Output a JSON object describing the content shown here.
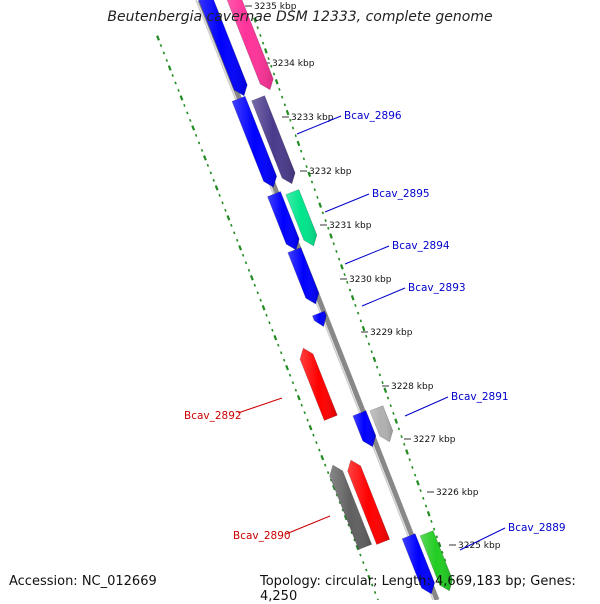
{
  "title": "Beutenbergia cavernae DSM 12333, complete genome",
  "footer": {
    "accession": "Accession: NC_012669",
    "topology": "Topology: circular; Length: 4,669,183 bp; Genes: 4,250"
  },
  "colors": {
    "axis": "#888888",
    "gc_ticks": "#228b22",
    "forward_label": "#0000cc",
    "reverse_label": "#cc0000",
    "kbp_text": "#111111"
  },
  "kbp_ticks": [
    "3235 kbp",
    "3234 kbp",
    "3233 kbp",
    "3232 kbp",
    "3231 kbp",
    "3230 kbp",
    "3229 kbp",
    "3228 kbp",
    "3227 kbp",
    "3226 kbp",
    "3225 kbp"
  ],
  "genes": [
    {
      "label": "",
      "color": "#0000ff",
      "track": "inner-forward"
    },
    {
      "label": "",
      "color": "#ff3399",
      "track": "outer-forward"
    },
    {
      "label": "Bcav_2896",
      "color": "#0000ff",
      "track": "inner-forward"
    },
    {
      "label": "",
      "color": "#4b3a8c",
      "track": "outer-forward"
    },
    {
      "label": "Bcav_2895",
      "color": "#0000ff",
      "track": "inner-forward"
    },
    {
      "label": "",
      "color": "#00e58c",
      "track": "outer-forward"
    },
    {
      "label": "Bcav_2894",
      "color": "#0000ff",
      "track": "inner-forward"
    },
    {
      "label": "Bcav_2893",
      "color": "#0000ff",
      "track": "inner-forward"
    },
    {
      "label": "Bcav_2892",
      "color": "#ff0000",
      "track": "reverse"
    },
    {
      "label": "Bcav_2891",
      "color": "#0000ff",
      "track": "inner-forward"
    },
    {
      "label": "",
      "color": "#b0b0b0",
      "track": "outer-forward"
    },
    {
      "label": "",
      "color": "#ff0000",
      "track": "reverse"
    },
    {
      "label": "Bcav_2890",
      "color": "#606060",
      "track": "reverse"
    },
    {
      "label": "Bcav_2889",
      "color": "#0000ff",
      "track": "inner-forward"
    },
    {
      "label": "",
      "color": "#22cc22",
      "track": "outer-forward"
    }
  ]
}
